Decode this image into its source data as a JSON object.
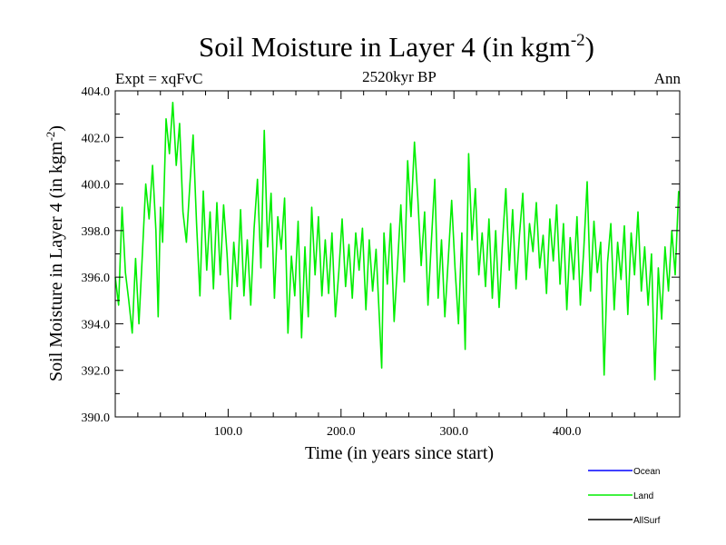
{
  "chart_data": {
    "type": "line",
    "title": "Soil Moisture in Layer 4 (in kgm",
    "title_sup": "-2",
    "title_close": ")",
    "subtitle": "2520kyr BP",
    "left_label": "Expt = xqFvC",
    "right_label": "Ann",
    "xlabel": "Time (in years since start)",
    "ylabel": "Soil Moisture in Layer 4 (in kgm",
    "ylabel_sup": "-2",
    "ylabel_close": ")",
    "xlim": [
      0,
      500
    ],
    "ylim": [
      390,
      404
    ],
    "x_ticks": [
      {
        "value": 100,
        "label": "100.0"
      },
      {
        "value": 200,
        "label": "200.0"
      },
      {
        "value": 300,
        "label": "300.0"
      },
      {
        "value": 400,
        "label": "400.0"
      }
    ],
    "y_ticks": [
      {
        "value": 390,
        "label": "390.0"
      },
      {
        "value": 392,
        "label": "392.0"
      },
      {
        "value": 394,
        "label": "394.0"
      },
      {
        "value": 396,
        "label": "396.0"
      },
      {
        "value": 398,
        "label": "398.0"
      },
      {
        "value": 400,
        "label": "400.0"
      },
      {
        "value": 402,
        "label": "402.0"
      },
      {
        "value": 404,
        "label": "404.0"
      }
    ],
    "legend": [
      {
        "name": "Ocean",
        "color": "#0000ff"
      },
      {
        "name": "Land",
        "color": "#00ee00"
      },
      {
        "name": "AllSurf",
        "color": "#000000"
      }
    ],
    "series": [
      {
        "name": "Land",
        "color": "#00ee00",
        "x": [
          0,
          3,
          6,
          9,
          12,
          15,
          18,
          21,
          24,
          27,
          30,
          33,
          36,
          38,
          40,
          42,
          45,
          48,
          51,
          54,
          57,
          60,
          63,
          66,
          69,
          72,
          75,
          78,
          81,
          84,
          87,
          90,
          93,
          96,
          99,
          102,
          105,
          108,
          111,
          114,
          117,
          120,
          123,
          126,
          129,
          132,
          135,
          138,
          141,
          144,
          147,
          150,
          153,
          156,
          159,
          162,
          165,
          168,
          171,
          174,
          177,
          180,
          183,
          186,
          189,
          192,
          195,
          198,
          201,
          204,
          207,
          210,
          213,
          216,
          219,
          222,
          225,
          228,
          231,
          234,
          236,
          238,
          241,
          244,
          247,
          250,
          253,
          256,
          259,
          262,
          265,
          268,
          271,
          274,
          277,
          280,
          283,
          286,
          289,
          292,
          295,
          298,
          301,
          304,
          307,
          310,
          313,
          316,
          319,
          322,
          325,
          328,
          331,
          334,
          337,
          340,
          343,
          346,
          349,
          352,
          355,
          358,
          361,
          364,
          367,
          370,
          373,
          376,
          379,
          382,
          385,
          388,
          391,
          394,
          397,
          400,
          403,
          406,
          409,
          412,
          415,
          418,
          421,
          424,
          427,
          430,
          433,
          436,
          439,
          442,
          445,
          448,
          451,
          454,
          457,
          460,
          463,
          466,
          469,
          472,
          475,
          478,
          481,
          484,
          487,
          490,
          493,
          496,
          499
        ],
        "y": [
          396.0,
          394.8,
          399.0,
          396.2,
          395.0,
          393.6,
          396.8,
          394.0,
          397.0,
          400.0,
          398.5,
          400.8,
          398.0,
          394.3,
          399.0,
          397.5,
          402.8,
          401.3,
          403.5,
          400.8,
          402.6,
          398.8,
          397.5,
          399.9,
          402.1,
          398.3,
          395.2,
          399.7,
          396.3,
          398.8,
          395.5,
          399.2,
          396.1,
          399.1,
          397.0,
          394.2,
          397.5,
          395.6,
          398.9,
          395.2,
          397.6,
          394.8,
          398.1,
          400.2,
          396.4,
          402.3,
          397.3,
          399.6,
          395.1,
          398.6,
          397.2,
          399.4,
          393.6,
          396.9,
          395.2,
          398.4,
          393.4,
          397.3,
          394.3,
          399.0,
          396.1,
          398.6,
          395.2,
          397.6,
          395.3,
          397.9,
          394.3,
          396.2,
          398.5,
          395.6,
          397.4,
          395.1,
          397.9,
          396.3,
          398.1,
          394.6,
          397.6,
          395.4,
          397.2,
          394.2,
          392.1,
          397.9,
          395.7,
          398.3,
          394.1,
          396.5,
          399.1,
          395.8,
          401.0,
          398.6,
          401.8,
          399.4,
          396.5,
          398.8,
          394.8,
          397.5,
          400.2,
          395.1,
          397.6,
          394.3,
          396.8,
          399.3,
          396.4,
          394.0,
          397.9,
          392.9,
          401.3,
          397.6,
          399.8,
          396.1,
          397.9,
          395.6,
          398.5,
          395.1,
          398.0,
          394.7,
          397.5,
          399.8,
          396.3,
          398.9,
          395.5,
          397.8,
          399.6,
          395.9,
          398.3,
          397.1,
          399.2,
          396.4,
          397.8,
          395.3,
          398.5,
          396.7,
          399.1,
          395.7,
          398.3,
          394.6,
          397.7,
          395.9,
          398.6,
          394.8,
          397.2,
          400.1,
          395.4,
          398.4,
          396.2,
          397.5,
          391.8,
          396.6,
          398.3,
          394.6,
          397.5,
          395.9,
          398.2,
          394.4,
          397.9,
          396.1,
          398.8,
          395.4,
          397.3,
          394.8,
          397.0,
          391.6,
          396.4,
          394.2,
          397.3,
          395.4,
          398.0,
          396.1,
          399.7
        ]
      }
    ]
  }
}
